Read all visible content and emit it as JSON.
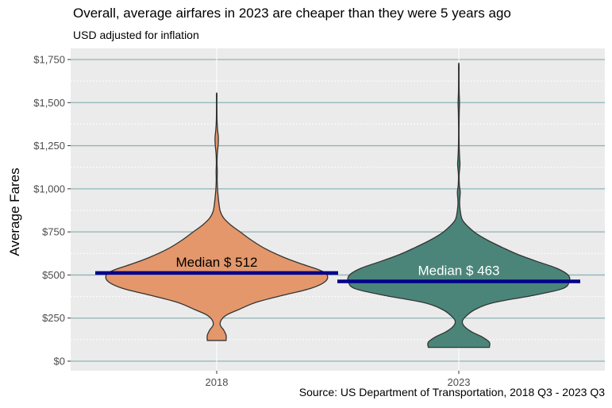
{
  "title": "Overall, average airfares in 2023 are cheaper than they were 5 years ago",
  "subtitle": "USD adjusted for inflation",
  "source": "Source: US Department of Transportation, 2018 Q3 - 2023 Q3",
  "chart_data": {
    "type": "violin",
    "ylabel": "Average Fares",
    "ylim": [
      0,
      1800
    ],
    "y_ticks": [
      0,
      250,
      500,
      750,
      1000,
      1250,
      1500,
      1750
    ],
    "y_tick_labels": [
      "$0",
      "$250",
      "$500",
      "$750",
      "$1,000",
      "$1,250",
      "$1,500",
      "$1,750"
    ],
    "categories": [
      "2018",
      "2023"
    ],
    "grid": true,
    "colors": {
      "panel_bg": "#ebebeb",
      "major_grid": "#8fb5b5",
      "minor_grid": "#ffffff",
      "median_line": "#00008b",
      "outline": "#333333"
    },
    "series": [
      {
        "category": "2018",
        "fill": "#e3976b",
        "median": 512,
        "median_label": "Median $ 512",
        "median_label_color": "#000000",
        "min": 120,
        "max": 1550,
        "density_profile": [
          [
            120,
            0.08
          ],
          [
            150,
            0.08
          ],
          [
            180,
            0.06
          ],
          [
            210,
            0.03
          ],
          [
            240,
            0.04
          ],
          [
            270,
            0.09
          ],
          [
            300,
            0.19
          ],
          [
            340,
            0.33
          ],
          [
            380,
            0.55
          ],
          [
            420,
            0.79
          ],
          [
            460,
            0.92
          ],
          [
            500,
            0.94
          ],
          [
            530,
            0.87
          ],
          [
            560,
            0.74
          ],
          [
            600,
            0.58
          ],
          [
            650,
            0.42
          ],
          [
            700,
            0.3
          ],
          [
            750,
            0.2
          ],
          [
            790,
            0.12
          ],
          [
            830,
            0.06
          ],
          [
            870,
            0.03
          ],
          [
            920,
            0.018
          ],
          [
            960,
            0.012
          ],
          [
            1000,
            0.007
          ],
          [
            1050,
            0.004
          ],
          [
            1100,
            0.005
          ],
          [
            1150,
            0.003
          ],
          [
            1200,
            0.005
          ],
          [
            1260,
            0.013
          ],
          [
            1300,
            0.014
          ],
          [
            1340,
            0.008
          ],
          [
            1400,
            0.003
          ],
          [
            1500,
            0.002
          ],
          [
            1550,
            0.002
          ]
        ]
      },
      {
        "category": "2023",
        "fill": "#4b8579",
        "median": 463,
        "median_label": "Median $ 463",
        "median_label_color": "#ffffff",
        "min": 80,
        "max": 1720,
        "density_profile": [
          [
            80,
            0.26
          ],
          [
            110,
            0.26
          ],
          [
            140,
            0.2
          ],
          [
            170,
            0.11
          ],
          [
            200,
            0.05
          ],
          [
            230,
            0.03
          ],
          [
            260,
            0.06
          ],
          [
            300,
            0.14
          ],
          [
            340,
            0.3
          ],
          [
            380,
            0.62
          ],
          [
            420,
            0.88
          ],
          [
            460,
            0.94
          ],
          [
            500,
            0.93
          ],
          [
            540,
            0.83
          ],
          [
            580,
            0.66
          ],
          [
            620,
            0.5
          ],
          [
            660,
            0.37
          ],
          [
            700,
            0.25
          ],
          [
            740,
            0.15
          ],
          [
            780,
            0.08
          ],
          [
            820,
            0.03
          ],
          [
            870,
            0.013
          ],
          [
            920,
            0.007
          ],
          [
            980,
            0.012
          ],
          [
            1020,
            0.005
          ],
          [
            1080,
            0.003
          ],
          [
            1140,
            0.01
          ],
          [
            1180,
            0.007
          ],
          [
            1250,
            0.003
          ],
          [
            1350,
            0.002
          ],
          [
            1450,
            0.004
          ],
          [
            1500,
            0.006
          ],
          [
            1560,
            0.003
          ],
          [
            1640,
            0.002
          ],
          [
            1720,
            0.002
          ]
        ]
      }
    ]
  }
}
